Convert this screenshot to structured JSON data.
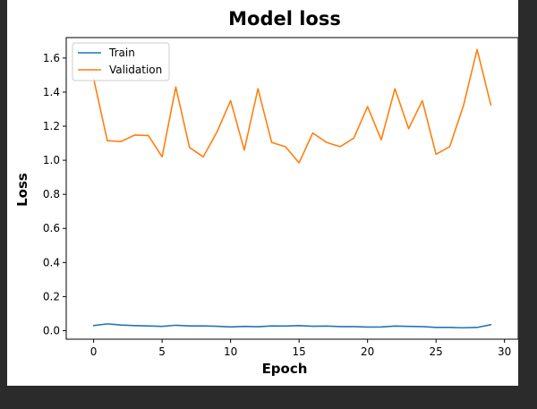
{
  "chart_data": {
    "type": "line",
    "title": "Model loss",
    "xlabel": "Epoch",
    "ylabel": "Loss",
    "xlim": [
      -2,
      31
    ],
    "ylim": [
      -0.05,
      1.72
    ],
    "xticks": [
      0,
      5,
      10,
      15,
      20,
      25,
      30
    ],
    "yticks": [
      0.0,
      0.2,
      0.4,
      0.6,
      0.8,
      1.0,
      1.2,
      1.4,
      1.6
    ],
    "grid": false,
    "legend_position": "upper-left",
    "x": [
      0,
      1,
      2,
      3,
      4,
      5,
      6,
      7,
      8,
      9,
      10,
      11,
      12,
      13,
      14,
      15,
      16,
      17,
      18,
      19,
      20,
      21,
      22,
      23,
      24,
      25,
      26,
      27,
      28,
      29
    ],
    "series": [
      {
        "name": "Train",
        "color": "#1f77b4",
        "values": [
          0.03,
          0.04,
          0.033,
          0.03,
          0.028,
          0.025,
          0.032,
          0.028,
          0.028,
          0.026,
          0.022,
          0.025,
          0.023,
          0.028,
          0.027,
          0.03,
          0.026,
          0.027,
          0.024,
          0.024,
          0.021,
          0.022,
          0.027,
          0.025,
          0.024,
          0.019,
          0.019,
          0.017,
          0.019,
          0.035
        ]
      },
      {
        "name": "Validation",
        "color": "#ff7f0e",
        "values": [
          1.48,
          1.115,
          1.11,
          1.148,
          1.145,
          1.02,
          1.43,
          1.075,
          1.02,
          1.165,
          1.35,
          1.06,
          1.42,
          1.105,
          1.08,
          0.985,
          1.16,
          1.105,
          1.08,
          1.13,
          1.315,
          1.12,
          1.42,
          1.185,
          1.35,
          1.035,
          1.08,
          1.32,
          1.65,
          1.325
        ]
      }
    ]
  }
}
